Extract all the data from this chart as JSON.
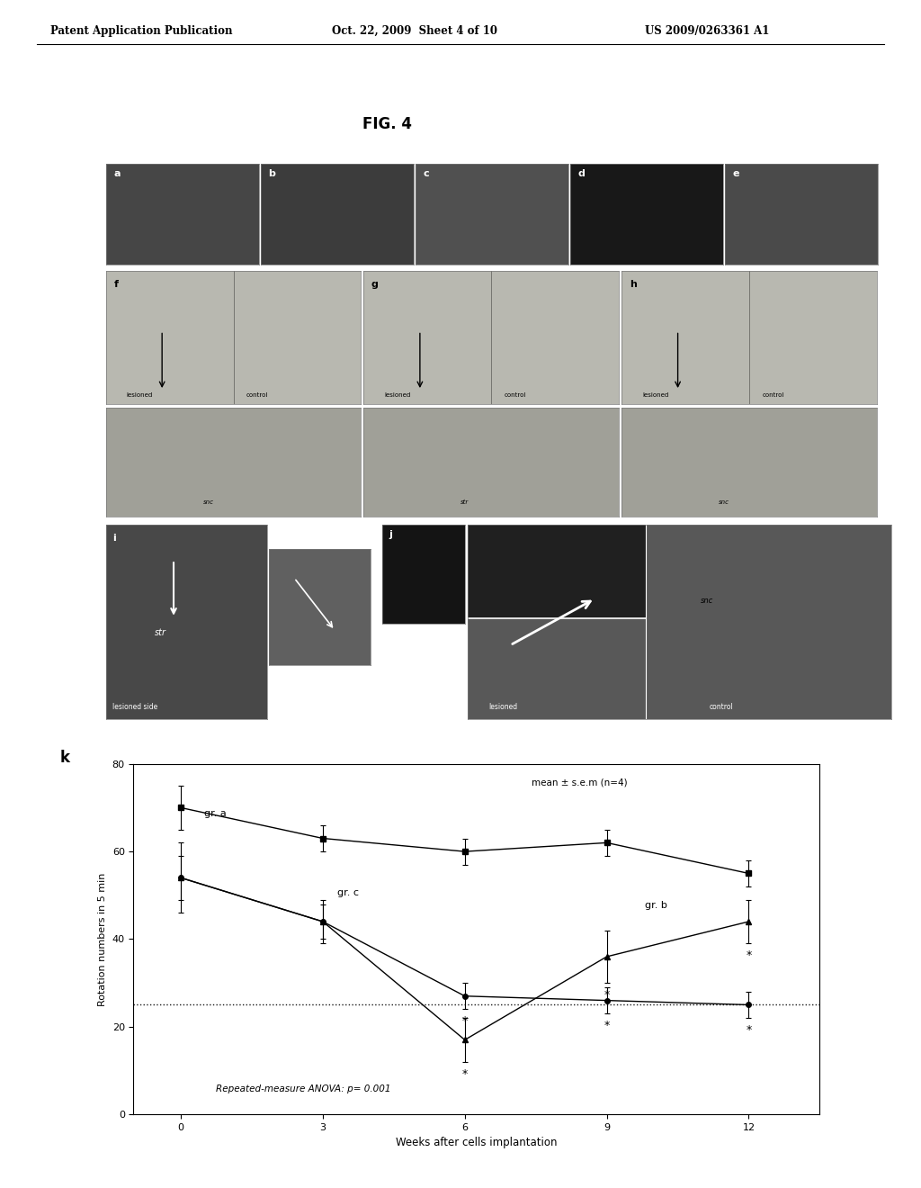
{
  "header_left": "Patent Application Publication",
  "header_center": "Oct. 22, 2009  Sheet 4 of 10",
  "header_right": "US 2009/0263361 A1",
  "fig_title": "FIG. 4",
  "graph": {
    "xlabel": "Weeks after cells implantation",
    "ylabel": "Rotation numbers in 5 min",
    "x_ticks": [
      0,
      3,
      6,
      9,
      12
    ],
    "ylim": [
      0,
      80
    ],
    "yticks": [
      0,
      20,
      40,
      60,
      80
    ],
    "dotted_line_y": 25,
    "annotation_top_right": "mean ± s.e.m (n=4)",
    "annotation_bottom": "Repeated-measure ANOVA: p= 0.001",
    "gr_a": {
      "label": "gr. a",
      "x": [
        0,
        3,
        6,
        9,
        12
      ],
      "y": [
        70,
        63,
        60,
        62,
        55
      ],
      "yerr": [
        5,
        3,
        3,
        3,
        3
      ],
      "marker": "s"
    },
    "gr_b": {
      "label": "gr. b",
      "x": [
        0,
        3,
        6,
        9,
        12
      ],
      "y": [
        54,
        44,
        17,
        36,
        44
      ],
      "yerr": [
        8,
        5,
        5,
        6,
        5
      ],
      "marker": "^"
    },
    "gr_c": {
      "label": "gr. c",
      "x": [
        0,
        3,
        6,
        9,
        12
      ],
      "y": [
        54,
        44,
        27,
        26,
        25
      ],
      "yerr": [
        5,
        4,
        3,
        3,
        3
      ],
      "marker": "o"
    }
  },
  "row1_panels": {
    "labels": [
      "a",
      "b",
      "c",
      "d",
      "e"
    ],
    "colors": [
      "#464646",
      "#3c3c3c",
      "#505050",
      "#181818",
      "#4a4a4a"
    ]
  },
  "row2_panels": {
    "labels": [
      "f",
      "g",
      "h"
    ]
  },
  "row3_panels": {
    "labels": [
      "i",
      "j"
    ]
  },
  "background_color": "#ffffff",
  "text_color": "#000000"
}
